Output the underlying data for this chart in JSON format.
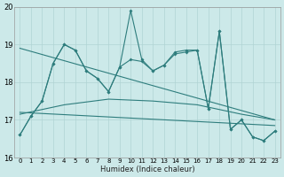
{
  "xlabel": "Humidex (Indice chaleur)",
  "xlim": [
    -0.5,
    23.5
  ],
  "ylim": [
    16,
    20
  ],
  "yticks": [
    16,
    17,
    18,
    19,
    20
  ],
  "xticks": [
    0,
    1,
    2,
    3,
    4,
    5,
    6,
    7,
    8,
    9,
    10,
    11,
    12,
    13,
    14,
    15,
    16,
    17,
    18,
    19,
    20,
    21,
    22,
    23
  ],
  "bg_color": "#cce9e9",
  "grid_color": "#b0d4d4",
  "line_color": "#2e7d7d",
  "line1_x": [
    0,
    1,
    2,
    3,
    4,
    5,
    6,
    7,
    8,
    9,
    10,
    11,
    12,
    13,
    14,
    15,
    16,
    17,
    18,
    19,
    20,
    21,
    22,
    23
  ],
  "line1_y": [
    16.6,
    17.1,
    17.5,
    18.5,
    19.0,
    18.85,
    18.3,
    18.1,
    17.75,
    18.4,
    19.9,
    18.6,
    18.3,
    18.45,
    18.8,
    18.85,
    18.85,
    17.3,
    19.35,
    16.75,
    17.0,
    16.55,
    16.45,
    16.7
  ],
  "line2_x": [
    0,
    1,
    2,
    3,
    4,
    5,
    6,
    7,
    8,
    9,
    10,
    11,
    12,
    13,
    14,
    15,
    16,
    17,
    18,
    19,
    20,
    21,
    22,
    23
  ],
  "line2_y": [
    16.6,
    17.1,
    17.5,
    18.5,
    19.0,
    18.85,
    18.3,
    18.1,
    17.75,
    18.4,
    18.6,
    18.55,
    18.3,
    18.45,
    18.75,
    18.8,
    18.85,
    17.3,
    19.35,
    16.75,
    17.0,
    16.55,
    16.45,
    16.7
  ],
  "line3_x": [
    0,
    23
  ],
  "line3_y": [
    18.9,
    17.0
  ],
  "line4_x": [
    0,
    4,
    8,
    12,
    16,
    20,
    23
  ],
  "line4_y": [
    17.15,
    17.4,
    17.55,
    17.5,
    17.4,
    17.15,
    17.0
  ],
  "line5_x": [
    0,
    23
  ],
  "line5_y": [
    17.2,
    16.85
  ]
}
